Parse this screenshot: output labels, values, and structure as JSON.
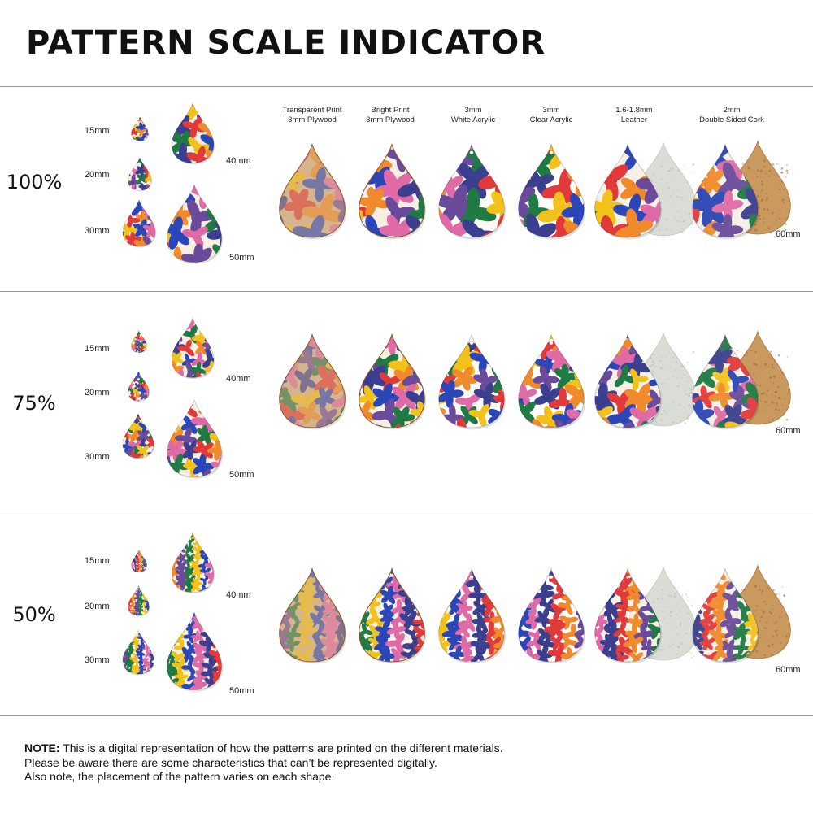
{
  "title": "PATTERN SCALE INDICATOR",
  "materials": [
    {
      "line1": "Transparent Print",
      "line2": "3mm Plywood",
      "base": "#d6b48e",
      "tint": 0.55,
      "backing": null
    },
    {
      "line1": "Bright Print",
      "line2": "3mm Plywood",
      "base": "#f6efe2",
      "tint": 1,
      "backing": null
    },
    {
      "line1": "3mm",
      "line2": "White Acrylic",
      "base": "#fbfaf5",
      "tint": 1,
      "backing": null
    },
    {
      "line1": "3mm",
      "line2": "Clear Acrylic",
      "base": "#ffffff",
      "tint": 1,
      "backing": null
    },
    {
      "line1": "1.6-1.8mm",
      "line2": "Leather",
      "base": "#f6f1e6",
      "tint": 1,
      "backing": "leather"
    },
    {
      "line1": "2mm",
      "line2": "Double Sided Cork",
      "base": "#f6f1e6",
      "tint": 0.95,
      "backing": "cork"
    }
  ],
  "sizes": {
    "s15": "15mm",
    "s20": "20mm",
    "s30": "30mm",
    "s40": "40mm",
    "s50": "50mm",
    "s60": "60mm"
  },
  "sections": [
    {
      "scale": "100%",
      "pattern_scale": 1.0
    },
    {
      "scale": "75%",
      "pattern_scale": 0.75
    },
    {
      "scale": "50%",
      "pattern_scale": 0.5
    }
  ],
  "palette": {
    "green": "#1f7a43",
    "yellow": "#f2c21b",
    "blue": "#2a46b8",
    "navy": "#3a3f8f",
    "pink": "#e06aa6",
    "red": "#e23a3a",
    "purple": "#6a4a9a",
    "orange": "#f08a2a"
  },
  "note": {
    "label": "NOTE:",
    "line1": " This is a digital representation of how the patterns are printed on the different materials.",
    "line2": "Please be aware there are some characteristics that can’t be represented digitally.",
    "line3": "Also note, the placement of the pattern varies on each shape."
  }
}
